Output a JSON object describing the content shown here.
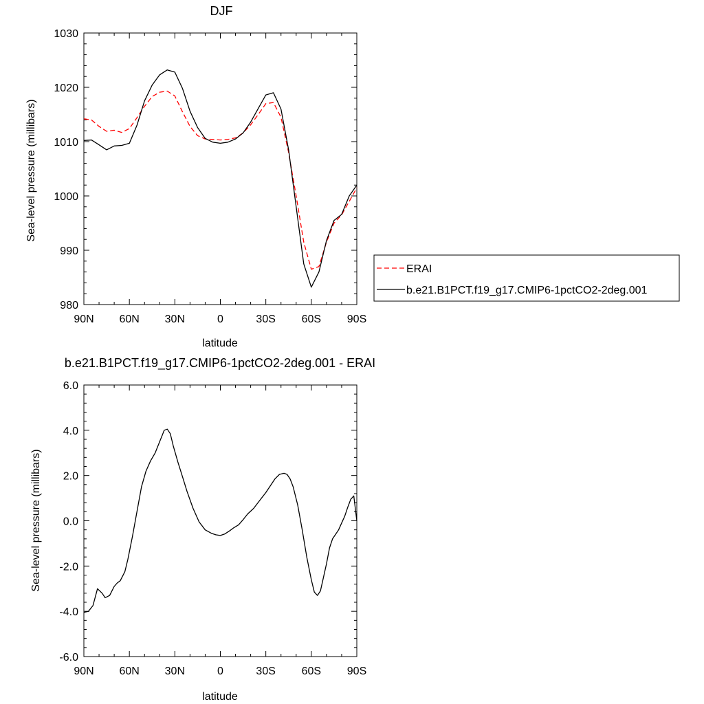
{
  "chart_data": [
    {
      "type": "line",
      "title": "DJF",
      "xlabel": "latitude",
      "ylabel": "Sea-level pressure (millibars)",
      "xlim": [
        -90,
        90
      ],
      "ylim": [
        980,
        1030
      ],
      "x_ticks": [
        -90,
        -60,
        -30,
        0,
        30,
        60,
        90
      ],
      "x_tick_labels": [
        "90N",
        "60N",
        "30N",
        "0",
        "30S",
        "60S",
        "90S"
      ],
      "y_ticks": [
        980,
        990,
        1000,
        1010,
        1020,
        1030
      ],
      "y_tick_labels": [
        "980",
        "990",
        "1000",
        "1010",
        "1020",
        "1030"
      ],
      "legend_position": "right",
      "series": [
        {
          "name": "ERAI",
          "color": "#ff0000",
          "style": "dashed",
          "x": [
            -90,
            -85,
            -80,
            -75,
            -70,
            -65,
            -60,
            -55,
            -50,
            -45,
            -40,
            -35,
            -30,
            -25,
            -20,
            -15,
            -10,
            -5,
            0,
            5,
            10,
            15,
            20,
            25,
            30,
            35,
            40,
            45,
            50,
            55,
            60,
            65,
            70,
            75,
            80,
            85,
            90
          ],
          "y": [
            1014.2,
            1014,
            1012.8,
            1011.9,
            1012.1,
            1011.7,
            1012.4,
            1014.4,
            1016.5,
            1018.3,
            1019.1,
            1019.3,
            1018.4,
            1015.5,
            1012.8,
            1011.1,
            1010.5,
            1010.4,
            1010.3,
            1010.4,
            1010.7,
            1011.6,
            1013.1,
            1015,
            1017,
            1017.2,
            1014.5,
            1008,
            1000,
            991.5,
            986.5,
            987,
            991.5,
            995,
            996.5,
            999,
            1001.5
          ]
        },
        {
          "name": "b.e21.B1PCT.f19_g17.CMIP6-1pctCO2-2deg.001",
          "color": "#000000",
          "style": "solid",
          "x": [
            -90,
            -85,
            -80,
            -75,
            -70,
            -65,
            -60,
            -55,
            -50,
            -45,
            -40,
            -35,
            -30,
            -25,
            -20,
            -15,
            -10,
            -5,
            0,
            5,
            10,
            15,
            20,
            25,
            30,
            35,
            40,
            45,
            50,
            55,
            60,
            65,
            70,
            75,
            80,
            85,
            90
          ],
          "y": [
            1010.2,
            1010.3,
            1009.4,
            1008.5,
            1009.2,
            1009.3,
            1009.7,
            1013,
            1017.5,
            1020.4,
            1022.3,
            1023.2,
            1022.8,
            1019.8,
            1015.6,
            1012.6,
            1010.6,
            1009.9,
            1009.7,
            1009.9,
            1010.5,
            1011.6,
            1013.6,
            1016.1,
            1018.6,
            1019,
            1016,
            1008.5,
            998,
            987.5,
            983.2,
            986,
            991.8,
            995.5,
            996.6,
            1000,
            1002
          ]
        }
      ]
    },
    {
      "type": "line",
      "title": "b.e21.B1PCT.f19_g17.CMIP6-1pctCO2-2deg.001 - ERAI",
      "xlabel": "latitude",
      "ylabel": "Sea-level pressure (millibars)",
      "xlim": [
        -90,
        90
      ],
      "ylim": [
        -6,
        6
      ],
      "x_ticks": [
        -90,
        -60,
        -30,
        0,
        30,
        60,
        90
      ],
      "x_tick_labels": [
        "90N",
        "60N",
        "30N",
        "0",
        "30S",
        "60S",
        "90S"
      ],
      "y_ticks": [
        -6,
        -4,
        -2,
        0,
        2,
        4,
        6
      ],
      "y_tick_labels": [
        "-6.0",
        "-4.0",
        "-2.0",
        "0.0",
        "2.0",
        "4.0",
        "6.0"
      ],
      "series": [
        {
          "color": "#000000",
          "style": "solid",
          "x": [
            -90,
            -87,
            -84,
            -81,
            -78,
            -76,
            -73,
            -70,
            -68,
            -66,
            -63,
            -61,
            -58,
            -55,
            -52,
            -49,
            -46,
            -43,
            -40,
            -37,
            -35,
            -33,
            -31,
            -28,
            -25,
            -22,
            -18,
            -14,
            -10,
            -6,
            -3,
            0,
            3,
            6,
            9,
            12,
            15,
            18,
            22,
            26,
            30,
            33,
            36,
            39,
            42,
            44,
            46,
            48,
            51,
            54,
            57,
            60,
            62,
            64,
            66,
            68,
            70,
            72,
            74,
            76,
            78,
            80,
            82,
            84,
            86,
            88,
            90
          ],
          "y": [
            -4.05,
            -4.0,
            -3.75,
            -3.0,
            -3.2,
            -3.4,
            -3.3,
            -2.9,
            -2.75,
            -2.65,
            -2.25,
            -1.7,
            -0.7,
            0.4,
            1.5,
            2.2,
            2.65,
            3.0,
            3.5,
            4.0,
            4.05,
            3.85,
            3.3,
            2.6,
            1.95,
            1.3,
            0.55,
            -0.05,
            -0.4,
            -0.55,
            -0.62,
            -0.65,
            -0.58,
            -0.45,
            -0.3,
            -0.18,
            0.05,
            0.3,
            0.55,
            0.9,
            1.25,
            1.55,
            1.85,
            2.05,
            2.1,
            2.05,
            1.85,
            1.5,
            0.7,
            -0.4,
            -1.6,
            -2.6,
            -3.15,
            -3.3,
            -3.1,
            -2.5,
            -1.9,
            -1.2,
            -0.8,
            -0.6,
            -0.4,
            -0.1,
            0.2,
            0.6,
            0.95,
            1.1,
            0.0
          ]
        }
      ]
    }
  ]
}
